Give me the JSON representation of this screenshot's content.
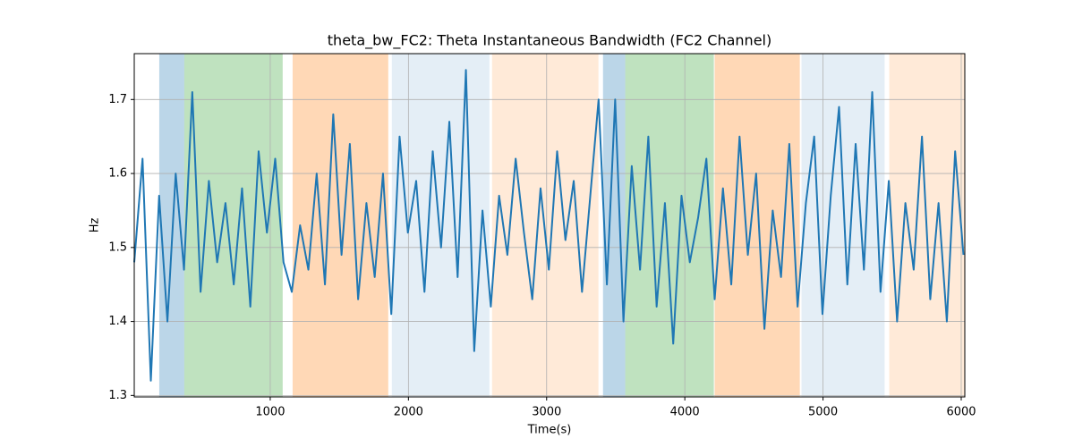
{
  "chart_data": {
    "type": "line",
    "title": "theta_bw_FC2: Theta Instantaneous Bandwidth (FC2 Channel)",
    "x_label": "Time(s)",
    "y_label": "Hz",
    "x": [
      16,
      76,
      136,
      196,
      256,
      316,
      376,
      436,
      496,
      556,
      616,
      676,
      736,
      796,
      856,
      916,
      976,
      1036,
      1096,
      1156,
      1216,
      1276,
      1336,
      1396,
      1456,
      1516,
      1576,
      1636,
      1696,
      1756,
      1816,
      1876,
      1936,
      1996,
      2056,
      2116,
      2176,
      2236,
      2296,
      2356,
      2416,
      2476,
      2536,
      2596,
      2656,
      2716,
      2776,
      2836,
      2896,
      2956,
      3016,
      3076,
      3136,
      3196,
      3256,
      3316,
      3376,
      3436,
      3496,
      3556,
      3616,
      3676,
      3736,
      3796,
      3856,
      3916,
      3976,
      4036,
      4096,
      4156,
      4216,
      4276,
      4336,
      4396,
      4456,
      4516,
      4576,
      4636,
      4696,
      4756,
      4816,
      4876,
      4936,
      4996,
      5056,
      5116,
      5176,
      5236,
      5296,
      5356,
      5416,
      5476,
      5536,
      5596,
      5656,
      5716,
      5776,
      5836,
      5896,
      5956,
      6016
    ],
    "series": [
      {
        "color": "#1f77b4",
        "values": [
          1.48,
          1.62,
          1.32,
          1.57,
          1.4,
          1.6,
          1.47,
          1.71,
          1.44,
          1.59,
          1.48,
          1.56,
          1.45,
          1.58,
          1.42,
          1.63,
          1.52,
          1.62,
          1.48,
          1.44,
          1.53,
          1.47,
          1.6,
          1.45,
          1.68,
          1.49,
          1.64,
          1.43,
          1.56,
          1.46,
          1.6,
          1.41,
          1.65,
          1.52,
          1.59,
          1.44,
          1.63,
          1.5,
          1.67,
          1.46,
          1.74,
          1.36,
          1.55,
          1.42,
          1.57,
          1.49,
          1.62,
          1.52,
          1.43,
          1.58,
          1.47,
          1.63,
          1.51,
          1.59,
          1.44,
          1.57,
          1.7,
          1.45,
          1.7,
          1.4,
          1.61,
          1.47,
          1.65,
          1.42,
          1.56,
          1.37,
          1.57,
          1.48,
          1.54,
          1.62,
          1.43,
          1.58,
          1.45,
          1.65,
          1.49,
          1.6,
          1.39,
          1.55,
          1.46,
          1.64,
          1.42,
          1.56,
          1.65,
          1.41,
          1.57,
          1.69,
          1.45,
          1.64,
          1.47,
          1.71,
          1.44,
          1.59,
          1.4,
          1.56,
          1.47,
          1.65,
          1.43,
          1.56,
          1.4,
          1.63,
          1.49
        ]
      }
    ],
    "spans": [
      {
        "start": 197,
        "end": 378,
        "color": "#1f77b4",
        "opacity": 0.3
      },
      {
        "start": 378,
        "end": 1090,
        "color": "#2ca02c",
        "opacity": 0.3
      },
      {
        "start": 1162,
        "end": 1854,
        "color": "#ff7f0e",
        "opacity": 0.3
      },
      {
        "start": 1880,
        "end": 2586,
        "color": "#1f77b4",
        "opacity": 0.12
      },
      {
        "start": 2605,
        "end": 3375,
        "color": "#ff7f0e",
        "opacity": 0.16
      },
      {
        "start": 3408,
        "end": 3569,
        "color": "#1f77b4",
        "opacity": 0.3
      },
      {
        "start": 3569,
        "end": 4210,
        "color": "#2ca02c",
        "opacity": 0.3
      },
      {
        "start": 4216,
        "end": 4832,
        "color": "#ff7f0e",
        "opacity": 0.3
      },
      {
        "start": 4844,
        "end": 5446,
        "color": "#1f77b4",
        "opacity": 0.12
      },
      {
        "start": 5479,
        "end": 6026,
        "color": "#ff7f0e",
        "opacity": 0.16
      }
    ],
    "xlim": [
      16,
      6026
    ],
    "ylim": [
      1.298,
      1.762
    ],
    "xticks": [
      1000,
      2000,
      3000,
      4000,
      5000,
      6000
    ],
    "yticks": [
      1.3,
      1.4,
      1.5,
      1.6,
      1.7
    ],
    "grid": true
  }
}
